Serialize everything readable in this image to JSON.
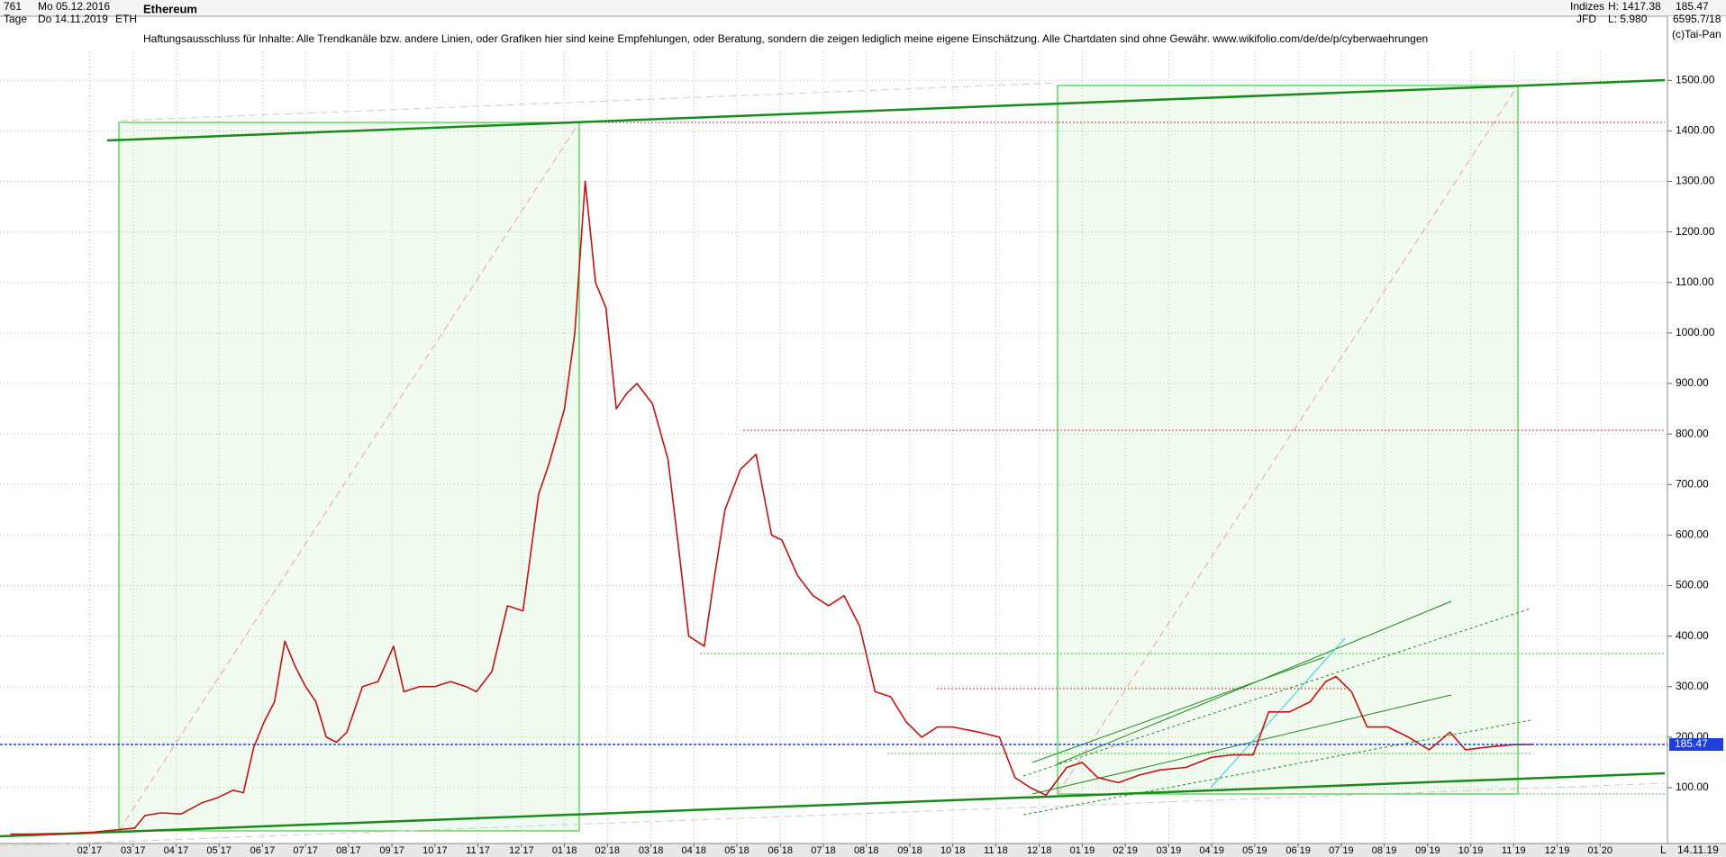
{
  "chart_data": {
    "type": "line",
    "title": "Ethereum",
    "header": {
      "bars": "761",
      "from": "Mo 05.12.2016",
      "period": "Tage",
      "to": "Do 14.11.2019",
      "symbol": "ETH",
      "market": "Indizes",
      "high": "H: 1417.38",
      "broker": "JFD",
      "low": "L: 5.980",
      "volume": "6595.7/18",
      "source": "(c)Tai-Pan",
      "axis_mode": "L",
      "end_date": "14.11.19"
    },
    "disclaimer": "Haftungsausschluss für Inhalte: Alle Trendkanäle bzw. andere Linien, oder Grafiken hier sind keine Empfehlungen, oder Beratung, sondern die zeigen lediglich meine eigene Einschätzung. Alle Chartdaten sind ohne Gewähr.  www.wikifolio.com/de/de/p/cyberwaehrungen",
    "last_price": 185.47,
    "last_price_color": "#1f3fd8",
    "color": "#c81010",
    "grid": true,
    "x": [
      2016.93,
      2016.97,
      2017.01,
      2017.05,
      2017.09,
      2017.13,
      2017.17,
      2017.19,
      2017.22,
      2017.26,
      2017.3,
      2017.33,
      2017.36,
      2017.38,
      2017.4,
      2017.42,
      2017.44,
      2017.46,
      2017.48,
      2017.5,
      2017.52,
      2017.54,
      2017.56,
      2017.58,
      2017.61,
      2017.64,
      2017.67,
      2017.69,
      2017.72,
      2017.75,
      2017.78,
      2017.81,
      2017.83,
      2017.86,
      2017.89,
      2017.92,
      2017.95,
      2017.97,
      2018.0,
      2018.02,
      2018.04,
      2018.06,
      2018.08,
      2018.1,
      2018.12,
      2018.14,
      2018.17,
      2018.2,
      2018.22,
      2018.24,
      2018.27,
      2018.29,
      2018.31,
      2018.34,
      2018.37,
      2018.4,
      2018.42,
      2018.45,
      2018.48,
      2018.51,
      2018.54,
      2018.57,
      2018.6,
      2018.63,
      2018.66,
      2018.69,
      2018.72,
      2018.75,
      2018.8,
      2018.84,
      2018.87,
      2018.9,
      2018.93,
      2018.97,
      2019.0,
      2019.03,
      2019.07,
      2019.11,
      2019.15,
      2019.2,
      2019.25,
      2019.29,
      2019.33,
      2019.36,
      2019.4,
      2019.44,
      2019.47,
      2019.49,
      2019.52,
      2019.55,
      2019.59,
      2019.63,
      2019.67,
      2019.71,
      2019.74,
      2019.78,
      2019.83,
      2019.87
    ],
    "values": [
      8,
      8,
      9,
      10,
      12,
      16,
      20,
      45,
      50,
      48,
      70,
      80,
      95,
      90,
      180,
      230,
      270,
      390,
      340,
      300,
      270,
      200,
      190,
      210,
      300,
      310,
      380,
      290,
      300,
      300,
      310,
      300,
      290,
      330,
      460,
      450,
      680,
      740,
      850,
      1000,
      1300,
      1100,
      1050,
      850,
      880,
      900,
      860,
      750,
      580,
      400,
      380,
      520,
      650,
      730,
      760,
      600,
      590,
      520,
      480,
      460,
      480,
      420,
      290,
      280,
      230,
      200,
      220,
      220,
      210,
      200,
      120,
      100,
      85,
      140,
      150,
      120,
      110,
      125,
      135,
      140,
      160,
      165,
      165,
      250,
      250,
      270,
      310,
      320,
      290,
      220,
      220,
      200,
      175,
      210,
      175,
      180,
      185,
      185.47
    ],
    "xlim": [
      2016.91,
      2020.13
    ],
    "ylim": [
      -10.5,
      1627
    ],
    "xticks": [
      {
        "value": 2017.083,
        "label": "02 17"
      },
      {
        "value": 2017.167,
        "label": "03 17"
      },
      {
        "value": 2017.25,
        "label": "04 17"
      },
      {
        "value": 2017.333,
        "label": "05 17"
      },
      {
        "value": 2017.417,
        "label": "06 17"
      },
      {
        "value": 2017.5,
        "label": "07 17"
      },
      {
        "value": 2017.583,
        "label": "08 17"
      },
      {
        "value": 2017.667,
        "label": "09 17"
      },
      {
        "value": 2017.75,
        "label": "10 17"
      },
      {
        "value": 2017.833,
        "label": "11 17"
      },
      {
        "value": 2017.917,
        "label": "12 17"
      },
      {
        "value": 2018.0,
        "label": "01 18"
      },
      {
        "value": 2018.083,
        "label": "02 18"
      },
      {
        "value": 2018.167,
        "label": "03 18"
      },
      {
        "value": 2018.25,
        "label": "04 18"
      },
      {
        "value": 2018.333,
        "label": "05 18"
      },
      {
        "value": 2018.417,
        "label": "06 18"
      },
      {
        "value": 2018.5,
        "label": "07 18"
      },
      {
        "value": 2018.583,
        "label": "08 18"
      },
      {
        "value": 2018.667,
        "label": "09 18"
      },
      {
        "value": 2018.75,
        "label": "10 18"
      },
      {
        "value": 2018.833,
        "label": "11 18"
      },
      {
        "value": 2018.917,
        "label": "12 18"
      },
      {
        "value": 2019.0,
        "label": "01 19"
      },
      {
        "value": 2019.083,
        "label": "02 19"
      },
      {
        "value": 2019.167,
        "label": "03 19"
      },
      {
        "value": 2019.25,
        "label": "04 19"
      },
      {
        "value": 2019.333,
        "label": "05 19"
      },
      {
        "value": 2019.417,
        "label": "06 19"
      },
      {
        "value": 2019.5,
        "label": "07 19"
      },
      {
        "value": 2019.583,
        "label": "08 19"
      },
      {
        "value": 2019.667,
        "label": "09 19"
      },
      {
        "value": 2019.75,
        "label": "10 19"
      },
      {
        "value": 2019.833,
        "label": "11 19"
      },
      {
        "value": 2019.917,
        "label": "12 19"
      },
      {
        "value": 2020.0,
        "label": "01 20"
      }
    ],
    "yticks": [
      {
        "value": 100,
        "label": "100.00"
      },
      {
        "value": 200,
        "label": "200.00"
      },
      {
        "value": 300,
        "label": "300.00"
      },
      {
        "value": 400,
        "label": "400.00"
      },
      {
        "value": 500,
        "label": "500.00"
      },
      {
        "value": 600,
        "label": "600.00"
      },
      {
        "value": 700,
        "label": "700.00"
      },
      {
        "value": 800,
        "label": "800.00"
      },
      {
        "value": 900,
        "label": "900.00"
      },
      {
        "value": 1000,
        "label": "1000.00"
      },
      {
        "value": 1100,
        "label": "1100.00"
      },
      {
        "value": 1200,
        "label": "1200.00"
      },
      {
        "value": 1300,
        "label": "1300.00"
      },
      {
        "value": 1400,
        "label": "1400.00"
      },
      {
        "value": 1500,
        "label": "1500.00"
      }
    ]
  }
}
